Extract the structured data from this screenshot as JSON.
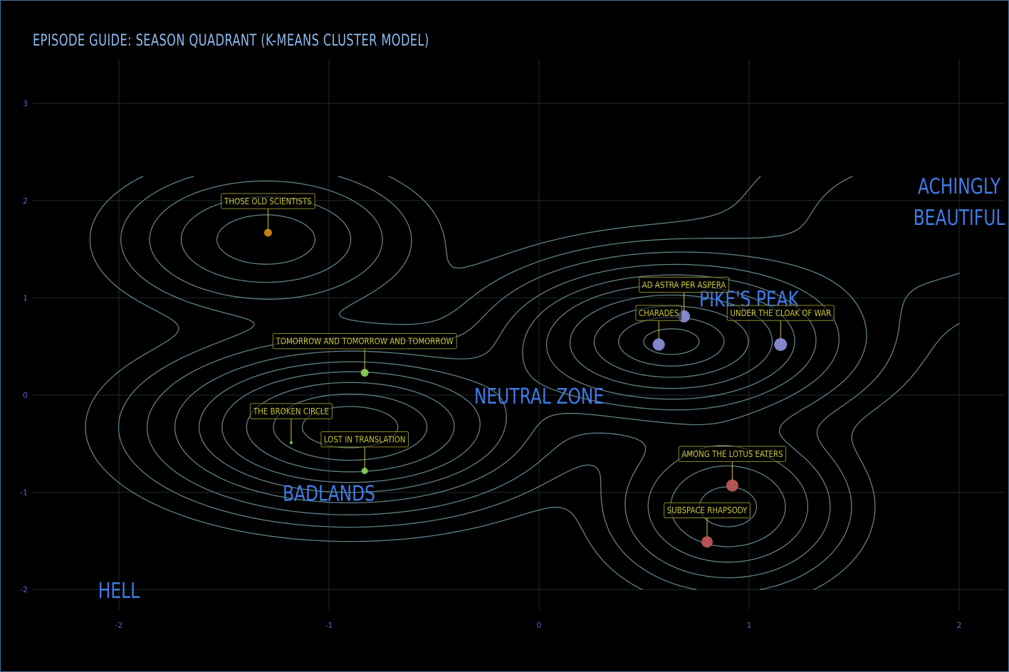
{
  "title": "EPISODE GUIDE: SEASON QUADRANT (K-MEANS CLUSTER MODEL)",
  "colors": {
    "background": "#000000",
    "grid": "#1f2a2a",
    "contour": "#5f8088",
    "tick": "#5865c9",
    "region": "#3f7be6",
    "label_text": "#c9c53a",
    "label_box": "#8a8a2a"
  },
  "chart_data": {
    "type": "scatter",
    "xlim": [
      -2.4,
      2.2
    ],
    "ylim": [
      -2.2,
      3.3
    ],
    "x_ticks": [
      -2,
      -1,
      0,
      1,
      2
    ],
    "y_ticks": [
      -2,
      -1,
      0,
      1,
      2,
      3
    ],
    "grid": true,
    "overlay": "density contour lines",
    "regions": [
      {
        "label": "ACHINGLY BEAUTIFUL",
        "lines": [
          "ACHINGLY",
          "BEAUTIFUL"
        ],
        "x": 2.0,
        "y": 2.0
      },
      {
        "label": "PIKE'S PEAK",
        "lines": [
          "PIKE'S PEAK"
        ],
        "x": 1.0,
        "y": 1.0
      },
      {
        "label": "NEUTRAL ZONE",
        "lines": [
          "NEUTRAL ZONE"
        ],
        "x": 0.0,
        "y": 0.0
      },
      {
        "label": "BADLANDS",
        "lines": [
          "BADLANDS"
        ],
        "x": -1.0,
        "y": -1.0
      },
      {
        "label": "HELL",
        "lines": [
          "HELL"
        ],
        "x": -2.0,
        "y": -2.0
      }
    ],
    "points": [
      {
        "label": "THOSE OLD SCIENTISTS",
        "x": -1.29,
        "y": 1.67,
        "color": "#d98a1a",
        "size": 5.5
      },
      {
        "label": "AD ASTRA PER ASPERA",
        "x": 0.69,
        "y": 0.81,
        "color": "#8f92e0",
        "size": 8.5
      },
      {
        "label": "CHARADES",
        "x": 0.57,
        "y": 0.52,
        "color": "#8f92e0",
        "size": 8.5
      },
      {
        "label": "UNDER THE CLOAK OF WAR",
        "x": 1.15,
        "y": 0.52,
        "color": "#8f92e0",
        "size": 9
      },
      {
        "label": "TOMORROW AND TOMORROW AND TOMORROW",
        "x": -0.83,
        "y": 0.23,
        "color": "#8fd65a",
        "size": 5.5
      },
      {
        "label": "THE BROKEN CIRCLE",
        "x": -1.18,
        "y": -0.49,
        "color": "#8fd65a",
        "size": 2
      },
      {
        "label": "LOST IN TRANSLATION",
        "x": -0.83,
        "y": -0.78,
        "color": "#8fd65a",
        "size": 4.5
      },
      {
        "label": "AMONG THE LOTUS EATERS",
        "x": 0.92,
        "y": -0.93,
        "color": "#c45a5a",
        "size": 8.5
      },
      {
        "label": "SUBSPACE RHAPSODY",
        "x": 0.8,
        "y": -1.51,
        "color": "#c45a5a",
        "size": 8
      }
    ]
  }
}
